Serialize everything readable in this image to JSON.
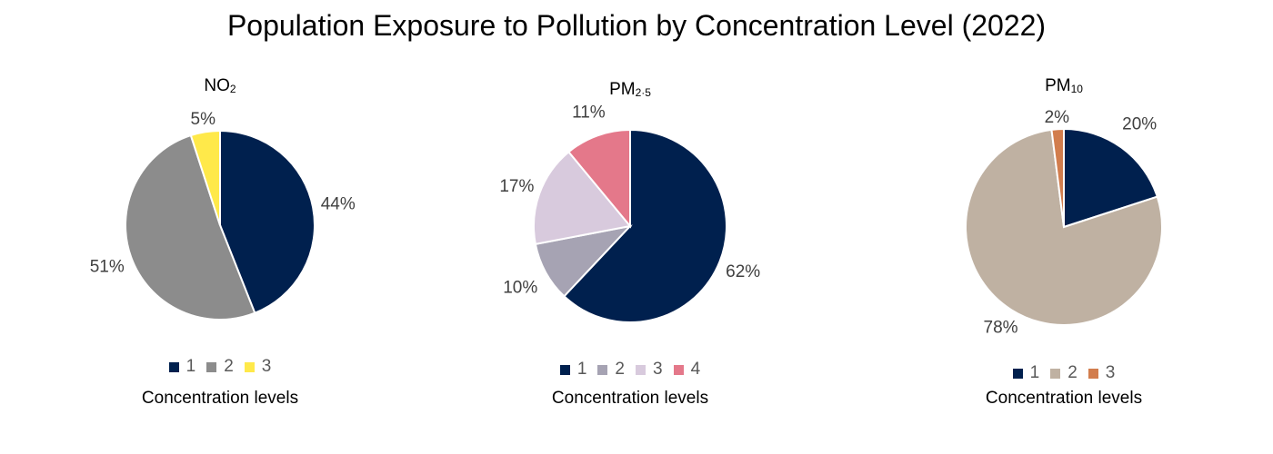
{
  "title": "Population Exposure to Pollution by Concentration Level (2022)",
  "chart_data": [
    {
      "type": "pie",
      "title_main": "NO",
      "title_sub": "2",
      "categories": [
        "1",
        "2",
        "3"
      ],
      "values": [
        44,
        51,
        5
      ],
      "labels": [
        "44%",
        "51%",
        "5%"
      ],
      "colors": [
        "#00204e",
        "#8c8c8c",
        "#ffe94a"
      ],
      "xlabel": "Concentration levels",
      "legend": "bottom"
    },
    {
      "type": "pie",
      "title_main": "PM",
      "title_sub": "2·5",
      "categories": [
        "1",
        "2",
        "3",
        "4"
      ],
      "values": [
        62,
        10,
        17,
        11
      ],
      "labels": [
        "62%",
        "10%",
        "17%",
        "11%"
      ],
      "colors": [
        "#00204e",
        "#a6a3b3",
        "#d8cadd",
        "#e4788a"
      ],
      "xlabel": "Concentration levels",
      "legend": "bottom"
    },
    {
      "type": "pie",
      "title_main": "PM",
      "title_sub": "10",
      "categories": [
        "1",
        "2",
        "3"
      ],
      "values": [
        20,
        78,
        2
      ],
      "labels": [
        "20%",
        "78%",
        "2%"
      ],
      "colors": [
        "#00204e",
        "#bfb1a2",
        "#d27d4d"
      ],
      "xlabel": "Concentration levels",
      "legend": "bottom"
    }
  ]
}
